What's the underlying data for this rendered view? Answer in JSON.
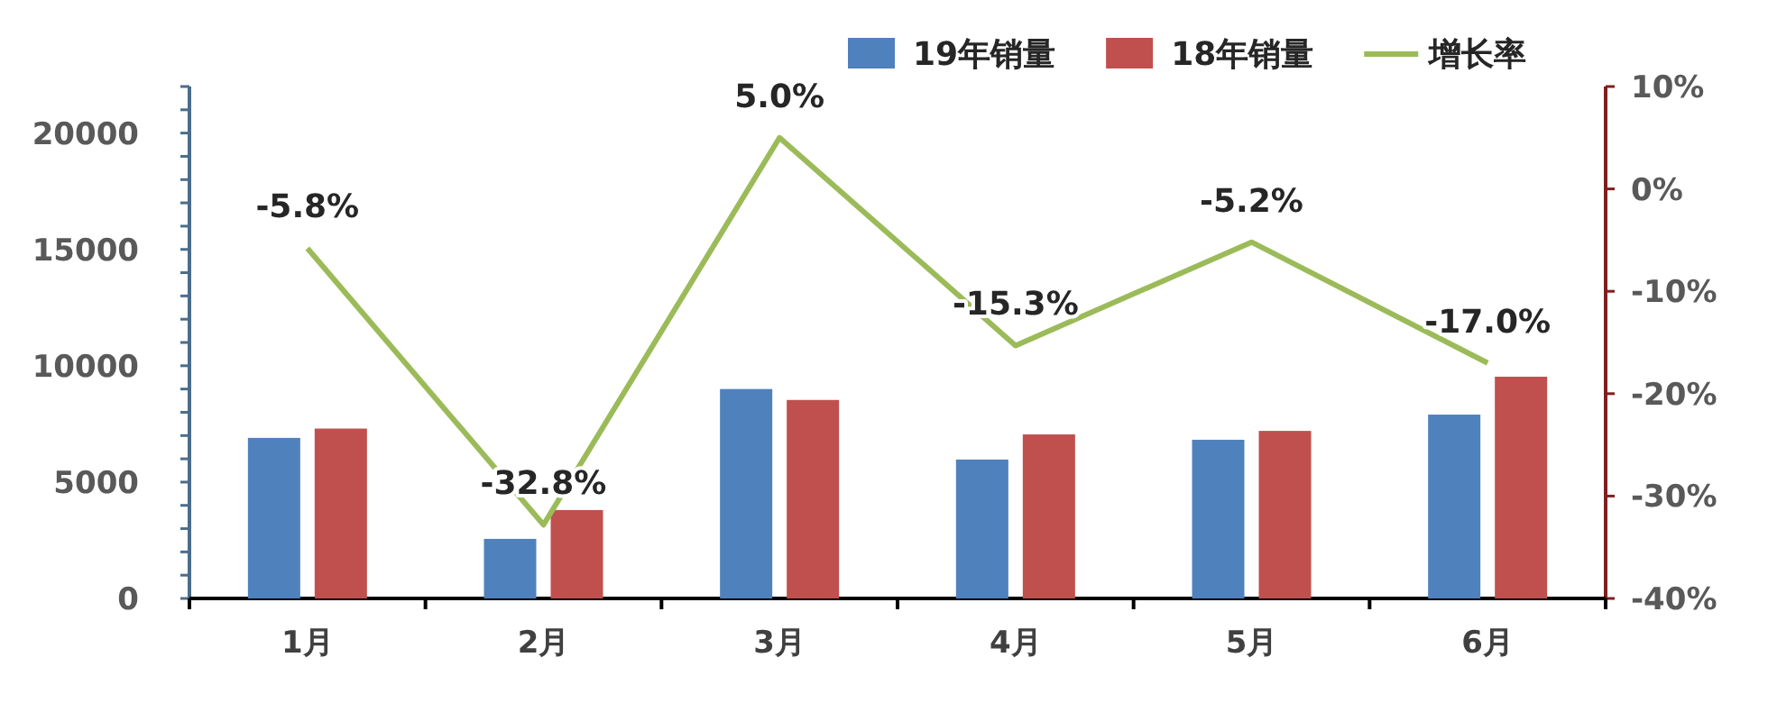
{
  "chart_data": {
    "type": "bar",
    "categories": [
      "1月",
      "2月",
      "3月",
      "4月",
      "5月",
      "6月"
    ],
    "series": [
      {
        "name": "19年销量",
        "color": "#4f81bd",
        "values": [
          6900,
          2560,
          9000,
          5970,
          6820,
          7900
        ]
      },
      {
        "name": "18年销量",
        "color": "#c0504d",
        "values": [
          7300,
          3800,
          8530,
          7050,
          7200,
          9530
        ]
      },
      {
        "name": "增长率",
        "type": "line",
        "axis": "y2",
        "color": "#9bbb59",
        "values": [
          -5.8,
          -32.8,
          5.0,
          -15.3,
          -5.2,
          -17.0
        ],
        "value_labels": [
          "-5.8%",
          "-32.8%",
          "5.0%",
          "-15.3%",
          "-5.2%",
          "-17.0%"
        ]
      }
    ],
    "ylim": [
      0,
      22000
    ],
    "yticks": [
      0,
      {
        "value": 1000,
        "label": null
      },
      {
        "value": 2000,
        "label": null
      },
      {
        "value": 3000,
        "label": null
      },
      {
        "value": 4000,
        "label": null
      },
      5000,
      {
        "value": 6000,
        "label": null
      },
      {
        "value": 7000,
        "label": null
      },
      {
        "value": 8000,
        "label": null
      },
      {
        "value": 9000,
        "label": null
      },
      10000,
      {
        "value": 11000,
        "label": null
      },
      {
        "value": 12000,
        "label": null
      },
      {
        "value": 13000,
        "label": null
      },
      {
        "value": 14000,
        "label": null
      },
      15000,
      {
        "value": 16000,
        "label": null
      },
      {
        "value": 17000,
        "label": null
      },
      {
        "value": 18000,
        "label": null
      },
      {
        "value": 19000,
        "label": null
      },
      20000,
      {
        "value": 21000,
        "label": null
      },
      {
        "value": 22000,
        "label": null
      }
    ],
    "y2lim": [
      -40,
      10
    ],
    "y2ticks": [
      {
        "value": -40,
        "label": "-40%"
      },
      {
        "value": -30,
        "label": "-30%"
      },
      {
        "value": -20,
        "label": "-20%"
      },
      {
        "value": -10,
        "label": "-10%"
      },
      {
        "value": 0,
        "label": "0%"
      },
      {
        "value": 10,
        "label": "10%"
      }
    ],
    "legend": "top right",
    "grid": false
  }
}
